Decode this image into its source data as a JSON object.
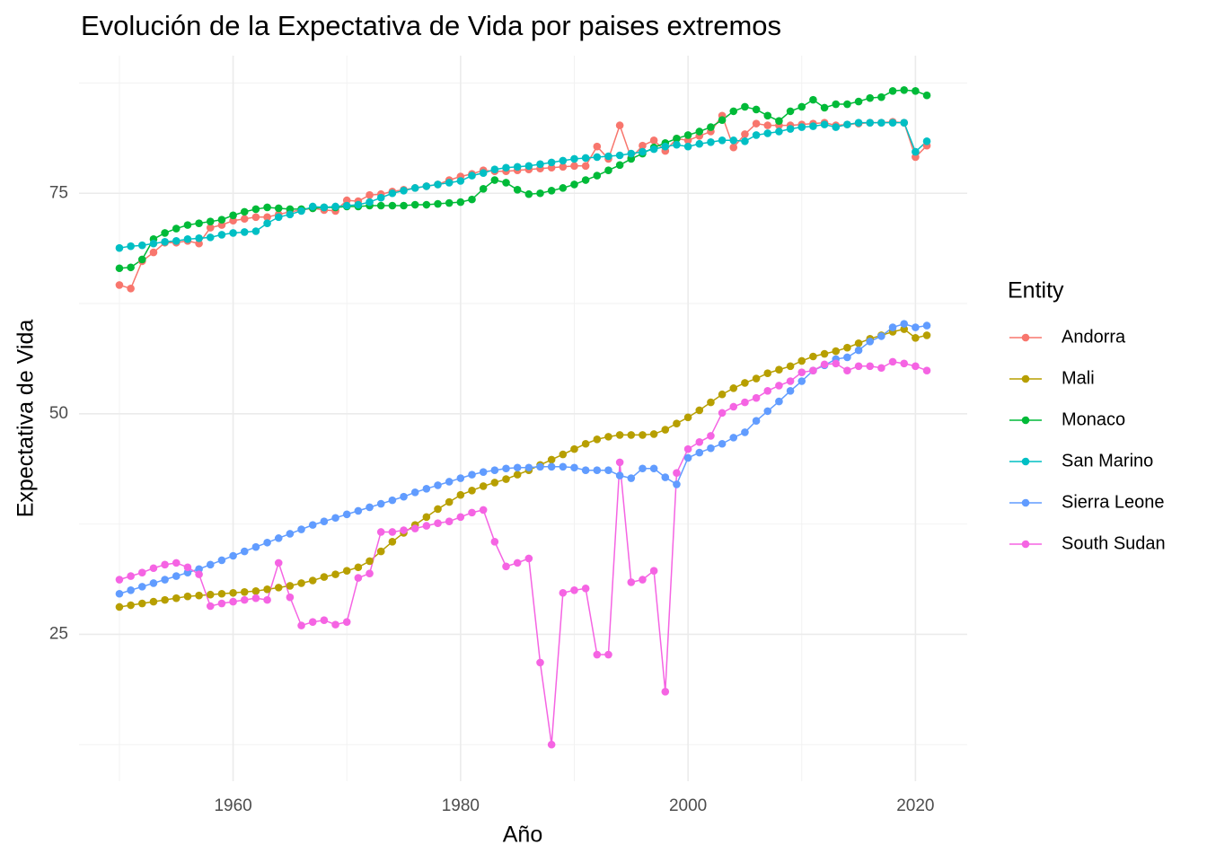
{
  "chart_data": {
    "type": "line",
    "title": "Evolución de la Expectativa de Vida por paises extremos",
    "x_label": "Año",
    "y_label": "Expectativa de Vida",
    "legend_title": "Entity",
    "legend": "right",
    "grid": true,
    "xlim": [
      1946.45,
      2024.55
    ],
    "xticks": [
      1960,
      1980,
      2000,
      2020
    ],
    "xminor": [
      1950,
      1970,
      1990,
      2010
    ],
    "ylim": [
      8.35,
      90.6
    ],
    "yticks": [
      25,
      50,
      75
    ],
    "yminor": [
      12.5,
      37.5,
      62.5,
      87.5
    ],
    "x": [
      1950,
      1951,
      1952,
      1953,
      1954,
      1955,
      1956,
      1957,
      1958,
      1959,
      1960,
      1961,
      1962,
      1963,
      1964,
      1965,
      1966,
      1967,
      1968,
      1969,
      1970,
      1971,
      1972,
      1973,
      1974,
      1975,
      1976,
      1977,
      1978,
      1979,
      1980,
      1981,
      1982,
      1983,
      1984,
      1985,
      1986,
      1987,
      1988,
      1989,
      1990,
      1991,
      1992,
      1993,
      1994,
      1995,
      1996,
      1997,
      1998,
      1999,
      2000,
      2001,
      2002,
      2003,
      2004,
      2005,
      2006,
      2007,
      2008,
      2009,
      2010,
      2011,
      2012,
      2013,
      2014,
      2015,
      2016,
      2017,
      2018,
      2019,
      2020,
      2021
    ],
    "series": [
      {
        "name": "Andorra",
        "color": "#F8766D",
        "values": [
          64.6,
          64.2,
          67.3,
          68.3,
          69.4,
          69.4,
          69.6,
          69.3,
          71.1,
          71.4,
          71.9,
          72.1,
          72.3,
          72.3,
          72.6,
          72.9,
          73.1,
          73.3,
          73.1,
          73.0,
          74.2,
          74.1,
          74.8,
          74.9,
          75.2,
          75.4,
          75.6,
          75.8,
          76.0,
          76.5,
          76.9,
          77.2,
          77.6,
          77.5,
          77.5,
          77.6,
          77.7,
          77.8,
          77.9,
          78.0,
          78.1,
          78.1,
          80.3,
          78.9,
          82.7,
          79.0,
          80.4,
          81.0,
          79.8,
          81.2,
          81.0,
          81.5,
          82.0,
          83.8,
          80.2,
          81.7,
          82.9,
          82.7,
          82.7,
          82.7,
          82.8,
          82.9,
          83.0,
          82.7,
          82.8,
          82.9,
          83.0,
          83.0,
          83.1,
          83.0,
          79.1,
          80.4
        ]
      },
      {
        "name": "Mali",
        "color": "#B79F00",
        "values": [
          28.1,
          28.3,
          28.5,
          28.7,
          28.9,
          29.1,
          29.3,
          29.4,
          29.5,
          29.6,
          29.7,
          29.8,
          29.9,
          30.1,
          30.3,
          30.5,
          30.8,
          31.1,
          31.5,
          31.8,
          32.2,
          32.6,
          33.3,
          34.4,
          35.5,
          36.5,
          37.4,
          38.3,
          39.2,
          40.0,
          40.8,
          41.3,
          41.8,
          42.2,
          42.6,
          43.1,
          43.6,
          44.2,
          44.8,
          45.4,
          46.0,
          46.6,
          47.1,
          47.4,
          47.6,
          47.6,
          47.6,
          47.7,
          48.2,
          48.9,
          49.6,
          50.4,
          51.3,
          52.2,
          52.9,
          53.5,
          54.0,
          54.6,
          55.0,
          55.4,
          56.0,
          56.5,
          56.8,
          57.1,
          57.5,
          58.0,
          58.5,
          58.9,
          59.3,
          59.6,
          58.6,
          58.9
        ]
      },
      {
        "name": "Monaco",
        "color": "#00BA38",
        "values": [
          66.5,
          66.6,
          67.5,
          69.8,
          70.5,
          71.0,
          71.4,
          71.6,
          71.8,
          72.0,
          72.5,
          72.9,
          73.2,
          73.4,
          73.3,
          73.2,
          73.2,
          73.3,
          73.4,
          73.4,
          73.5,
          73.5,
          73.6,
          73.6,
          73.6,
          73.6,
          73.7,
          73.7,
          73.8,
          73.9,
          74.0,
          74.3,
          75.5,
          76.5,
          76.2,
          75.4,
          74.9,
          75.0,
          75.3,
          75.6,
          76.0,
          76.5,
          77.0,
          77.6,
          78.2,
          78.9,
          79.5,
          80.2,
          80.7,
          81.2,
          81.6,
          82.0,
          82.5,
          83.3,
          84.3,
          84.8,
          84.5,
          83.8,
          83.2,
          84.3,
          84.8,
          85.6,
          84.7,
          85.1,
          85.1,
          85.4,
          85.8,
          85.9,
          86.6,
          86.7,
          86.6,
          86.1
        ]
      },
      {
        "name": "San Marino",
        "color": "#00BFC4",
        "values": [
          68.8,
          69.0,
          69.1,
          69.3,
          69.5,
          69.6,
          69.8,
          69.9,
          70.0,
          70.3,
          70.5,
          70.6,
          70.7,
          71.6,
          72.3,
          72.6,
          73.0,
          73.5,
          73.4,
          73.5,
          73.6,
          73.7,
          74.0,
          74.5,
          75.0,
          75.3,
          75.6,
          75.8,
          76.0,
          76.2,
          76.4,
          77.0,
          77.3,
          77.7,
          77.9,
          78.0,
          78.1,
          78.3,
          78.5,
          78.7,
          78.9,
          79.0,
          79.1,
          79.2,
          79.3,
          79.5,
          79.7,
          80.0,
          80.3,
          80.5,
          80.3,
          80.6,
          80.8,
          81.0,
          81.0,
          80.9,
          81.6,
          81.8,
          82.0,
          82.3,
          82.5,
          82.6,
          82.8,
          82.5,
          82.8,
          83.0,
          83.0,
          83.0,
          83.0,
          83.0,
          79.7,
          80.9
        ]
      },
      {
        "name": "Sierra Leone",
        "color": "#619CFF",
        "values": [
          29.6,
          30.0,
          30.4,
          30.8,
          31.2,
          31.6,
          32.0,
          32.4,
          32.9,
          33.4,
          33.9,
          34.4,
          34.9,
          35.4,
          35.9,
          36.4,
          36.9,
          37.4,
          37.8,
          38.2,
          38.6,
          39.0,
          39.4,
          39.8,
          40.2,
          40.6,
          41.1,
          41.5,
          41.9,
          42.3,
          42.7,
          43.1,
          43.4,
          43.6,
          43.8,
          43.9,
          43.9,
          44.0,
          44.0,
          44.0,
          43.9,
          43.6,
          43.6,
          43.6,
          43.0,
          42.7,
          43.8,
          43.8,
          42.8,
          42.0,
          45.0,
          45.6,
          46.1,
          46.6,
          47.3,
          47.9,
          49.2,
          50.3,
          51.4,
          52.6,
          53.7,
          54.9,
          55.5,
          56.2,
          56.4,
          57.2,
          58.2,
          58.8,
          59.8,
          60.2,
          59.8,
          60.0
        ]
      },
      {
        "name": "South Sudan",
        "color": "#F564E3",
        "values": [
          31.2,
          31.6,
          32.0,
          32.5,
          32.9,
          33.1,
          32.6,
          31.8,
          28.2,
          28.5,
          28.7,
          28.9,
          29.1,
          28.9,
          33.1,
          29.2,
          26.0,
          26.4,
          26.6,
          26.1,
          26.4,
          31.4,
          31.9,
          36.6,
          36.6,
          36.8,
          37.0,
          37.3,
          37.6,
          37.8,
          38.3,
          38.8,
          39.1,
          35.5,
          32.7,
          33.1,
          33.6,
          21.8,
          12.5,
          29.7,
          30.0,
          30.2,
          22.7,
          22.7,
          44.5,
          30.9,
          31.2,
          32.2,
          18.5,
          43.3,
          46.0,
          46.8,
          47.5,
          50.1,
          50.8,
          51.3,
          51.8,
          52.6,
          53.2,
          53.7,
          54.7,
          54.9,
          55.6,
          55.7,
          54.9,
          55.4,
          55.4,
          55.2,
          55.9,
          55.7,
          55.4,
          54.9
        ]
      }
    ]
  }
}
